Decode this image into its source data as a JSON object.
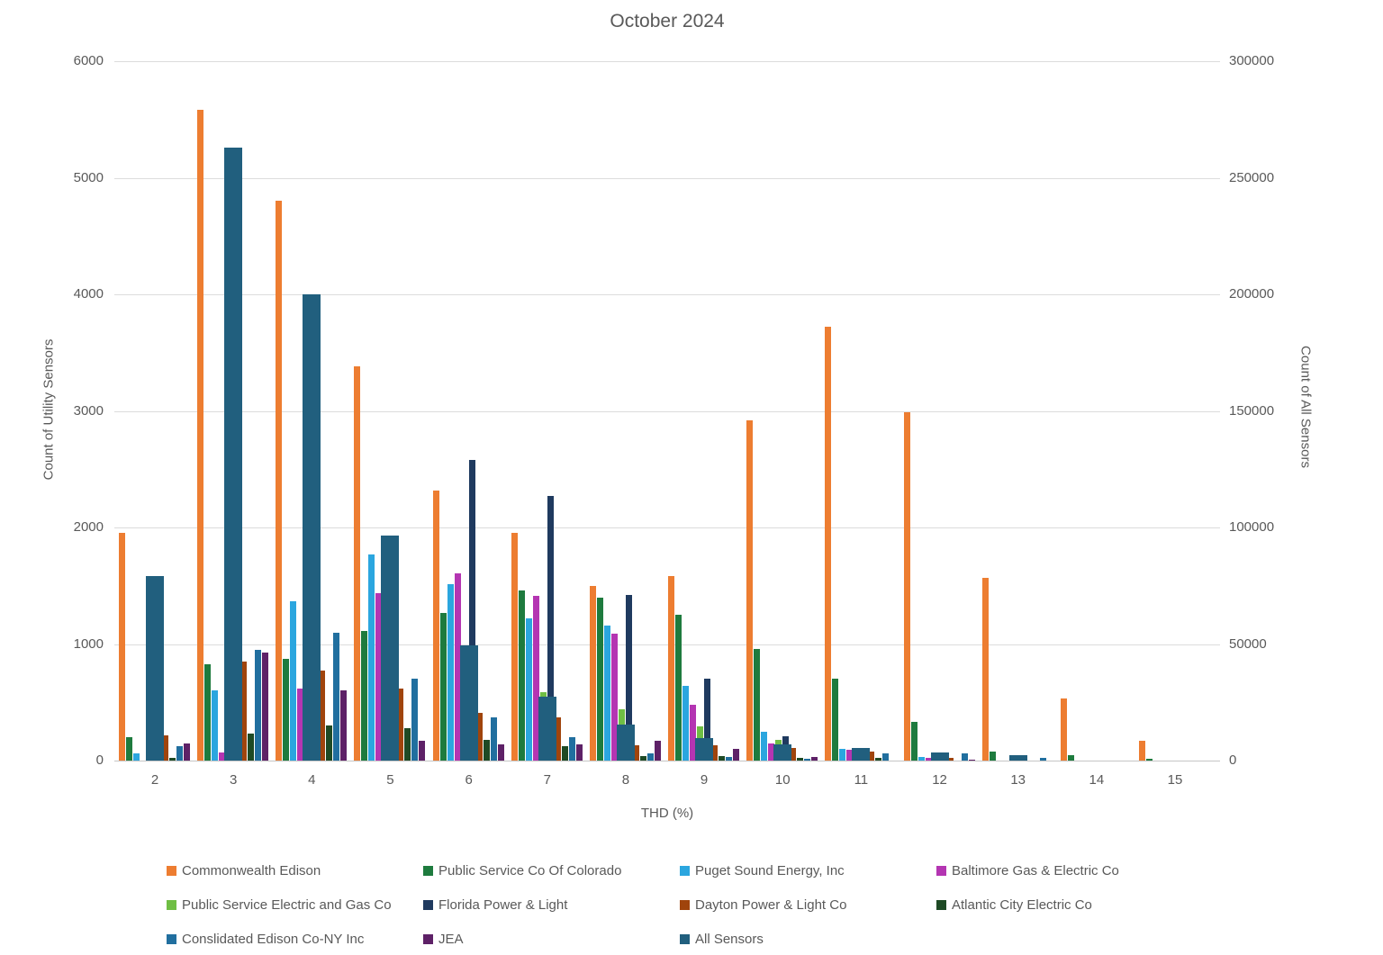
{
  "title": "October 2024",
  "axes": {
    "left": {
      "title": "Count of Utility Sensors",
      "max": 6000,
      "ticks": [
        "6000",
        "5000",
        "4000",
        "3000",
        "2000",
        "1000",
        "0"
      ]
    },
    "right": {
      "title": "Count of All Sensors",
      "max": 300000,
      "ticks": [
        "300000",
        "250000",
        "200000",
        "150000",
        "100000",
        "50000",
        "0"
      ]
    },
    "x": {
      "title": "THD (%)"
    }
  },
  "chart_data": {
    "type": "bar",
    "title": "October 2024",
    "xlabel": "THD (%)",
    "ylabel_left": "Count of Utility Sensors",
    "ylabel_right": "Count of All Sensors",
    "ylim_left": [
      0,
      6000
    ],
    "ylim_right": [
      0,
      300000
    ],
    "grid": true,
    "legend_position": "bottom",
    "categories": [
      2,
      3,
      4,
      5,
      6,
      7,
      8,
      9,
      10,
      11,
      12,
      13,
      14,
      15
    ],
    "series": [
      {
        "name": "Commonwealth Edison",
        "color": "#ED7D31",
        "axis": "left",
        "values": [
          1950,
          5580,
          4800,
          3380,
          2320,
          1950,
          1500,
          1580,
          2920,
          3720,
          2990,
          1570,
          530,
          170
        ]
      },
      {
        "name": "Public Service Co Of Colorado",
        "color": "#1E7B3E",
        "axis": "left",
        "values": [
          200,
          830,
          870,
          1110,
          1270,
          1460,
          1400,
          1250,
          960,
          700,
          330,
          80,
          50,
          15
        ]
      },
      {
        "name": "Puget Sound Energy, Inc",
        "color": "#2BA6DF",
        "axis": "left",
        "values": [
          60,
          600,
          1370,
          1770,
          1510,
          1220,
          1160,
          640,
          250,
          100,
          30,
          0,
          0,
          0
        ]
      },
      {
        "name": "Baltimore Gas & Electric Co",
        "color": "#B435B2",
        "axis": "left",
        "values": [
          0,
          70,
          620,
          1440,
          1610,
          1410,
          1090,
          480,
          150,
          90,
          20,
          0,
          0,
          0
        ]
      },
      {
        "name": "Public Service Electric and Gas Co",
        "color": "#6FBE44",
        "axis": "left",
        "values": [
          50,
          200,
          500,
          800,
          900,
          590,
          440,
          290,
          180,
          60,
          10,
          0,
          0,
          0
        ]
      },
      {
        "name": "Florida Power & Light",
        "color": "#1F3A5F",
        "axis": "left",
        "values": [
          100,
          900,
          1600,
          1800,
          2580,
          2270,
          1420,
          700,
          210,
          90,
          30,
          0,
          0,
          0
        ]
      },
      {
        "name": "Dayton Power & Light Co",
        "color": "#A0440C",
        "axis": "left",
        "values": [
          220,
          850,
          770,
          620,
          410,
          370,
          130,
          130,
          110,
          80,
          25,
          0,
          0,
          0
        ]
      },
      {
        "name": "Atlantic City Electric Co",
        "color": "#1E4A25",
        "axis": "left",
        "values": [
          20,
          230,
          300,
          280,
          180,
          120,
          40,
          40,
          20,
          25,
          0,
          0,
          0,
          0
        ]
      },
      {
        "name": "Conslidated Edison Co-NY Inc",
        "color": "#216F9F",
        "axis": "left",
        "values": [
          120,
          950,
          1100,
          700,
          370,
          200,
          60,
          30,
          15,
          60,
          60,
          25,
          0,
          0
        ]
      },
      {
        "name": "JEA",
        "color": "#5E2167",
        "axis": "left",
        "values": [
          150,
          930,
          600,
          170,
          140,
          140,
          170,
          100,
          30,
          0,
          10,
          0,
          0,
          0
        ]
      },
      {
        "name": "All Sensors",
        "color": "#215F7E",
        "axis": "right",
        "wide": true,
        "values": [
          79000,
          263000,
          200000,
          96500,
          49500,
          27500,
          15500,
          9500,
          7000,
          5500,
          3500,
          2200,
          0,
          0
        ]
      }
    ]
  }
}
